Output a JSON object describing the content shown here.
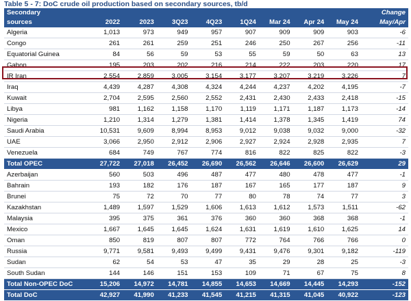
{
  "title": "Table 5 - 7: DoC crude oil production based on secondary sources, tb/d",
  "header": {
    "label_line1": "Secondary",
    "label_line2": "sources",
    "change_line1": "Change",
    "change_line2": "May/Apr",
    "columns": [
      "2022",
      "2023",
      "3Q23",
      "4Q23",
      "1Q24",
      "Mar 24",
      "Apr 24",
      "May 24"
    ]
  },
  "rows": [
    {
      "name": "Algeria",
      "values": [
        "1,013",
        "973",
        "949",
        "957",
        "907",
        "909",
        "909",
        "903"
      ],
      "change": "-6"
    },
    {
      "name": "Congo",
      "values": [
        "261",
        "261",
        "259",
        "251",
        "246",
        "250",
        "267",
        "256"
      ],
      "change": "-11"
    },
    {
      "name": "Equatorial Guinea",
      "values": [
        "84",
        "56",
        "59",
        "53",
        "55",
        "59",
        "50",
        "63"
      ],
      "change": "13"
    },
    {
      "name": "Gabon",
      "values": [
        "195",
        "203",
        "202",
        "216",
        "214",
        "222",
        "203",
        "220"
      ],
      "change": "17"
    },
    {
      "name": "IR Iran",
      "values": [
        "2,554",
        "2,859",
        "3,005",
        "3,154",
        "3,177",
        "3,207",
        "3,219",
        "3,226"
      ],
      "change": "7"
    },
    {
      "name": "Iraq",
      "values": [
        "4,439",
        "4,287",
        "4,308",
        "4,324",
        "4,244",
        "4,237",
        "4,202",
        "4,195"
      ],
      "change": "-7"
    },
    {
      "name": "Kuwait",
      "values": [
        "2,704",
        "2,595",
        "2,560",
        "2,552",
        "2,431",
        "2,430",
        "2,433",
        "2,418"
      ],
      "change": "-15"
    },
    {
      "name": "Libya",
      "values": [
        "981",
        "1,162",
        "1,158",
        "1,170",
        "1,119",
        "1,171",
        "1,187",
        "1,173"
      ],
      "change": "-14"
    },
    {
      "name": "Nigeria",
      "values": [
        "1,210",
        "1,314",
        "1,279",
        "1,381",
        "1,414",
        "1,378",
        "1,345",
        "1,419"
      ],
      "change": "74"
    },
    {
      "name": "Saudi Arabia",
      "values": [
        "10,531",
        "9,609",
        "8,994",
        "8,953",
        "9,012",
        "9,038",
        "9,032",
        "9,000"
      ],
      "change": "-32"
    },
    {
      "name": "UAE",
      "values": [
        "3,066",
        "2,950",
        "2,912",
        "2,906",
        "2,927",
        "2,924",
        "2,928",
        "2,935"
      ],
      "change": "7"
    },
    {
      "name": "Venezuela",
      "values": [
        "684",
        "749",
        "767",
        "774",
        "816",
        "822",
        "825",
        "822"
      ],
      "change": "-3"
    }
  ],
  "total_opec": {
    "name": "Total  OPEC",
    "values": [
      "27,722",
      "27,018",
      "26,452",
      "26,690",
      "26,562",
      "26,646",
      "26,600",
      "26,629"
    ],
    "change": "29"
  },
  "nonopec_rows": [
    {
      "name": "Azerbaijan",
      "values": [
        "560",
        "503",
        "496",
        "487",
        "477",
        "480",
        "478",
        "477"
      ],
      "change": "-1"
    },
    {
      "name": "Bahrain",
      "values": [
        "193",
        "182",
        "176",
        "187",
        "167",
        "165",
        "177",
        "187"
      ],
      "change": "9"
    },
    {
      "name": "Brunei",
      "values": [
        "75",
        "72",
        "70",
        "77",
        "80",
        "78",
        "74",
        "77"
      ],
      "change": "3"
    },
    {
      "name": "Kazakhstan",
      "values": [
        "1,489",
        "1,597",
        "1,529",
        "1,606",
        "1,613",
        "1,612",
        "1,573",
        "1,511"
      ],
      "change": "-62"
    },
    {
      "name": "Malaysia",
      "values": [
        "395",
        "375",
        "361",
        "376",
        "360",
        "360",
        "368",
        "368"
      ],
      "change": "-1"
    },
    {
      "name": "Mexico",
      "values": [
        "1,667",
        "1,645",
        "1,645",
        "1,624",
        "1,631",
        "1,619",
        "1,610",
        "1,625"
      ],
      "change": "14"
    },
    {
      "name": "Oman",
      "values": [
        "850",
        "819",
        "807",
        "807",
        "772",
        "764",
        "766",
        "766"
      ],
      "change": "0"
    },
    {
      "name": "Russia",
      "values": [
        "9,771",
        "9,581",
        "9,493",
        "9,499",
        "9,431",
        "9,476",
        "9,301",
        "9,182"
      ],
      "change": "-119"
    },
    {
      "name": "Sudan",
      "values": [
        "62",
        "54",
        "53",
        "47",
        "35",
        "29",
        "28",
        "25"
      ],
      "change": "-3"
    },
    {
      "name": "South Sudan",
      "values": [
        "144",
        "146",
        "151",
        "153",
        "109",
        "71",
        "67",
        "75"
      ],
      "change": "8"
    }
  ],
  "total_nonopec": {
    "name": "Total Non-OPEC DoC",
    "values": [
      "15,206",
      "14,972",
      "14,781",
      "14,855",
      "14,653",
      "14,669",
      "14,445",
      "14,293"
    ],
    "change": "-152"
  },
  "total_doc": {
    "name": "Total DoC",
    "values": [
      "42,927",
      "41,990",
      "41,233",
      "41,545",
      "41,215",
      "41,315",
      "41,045",
      "40,922"
    ],
    "change": "-123"
  }
}
